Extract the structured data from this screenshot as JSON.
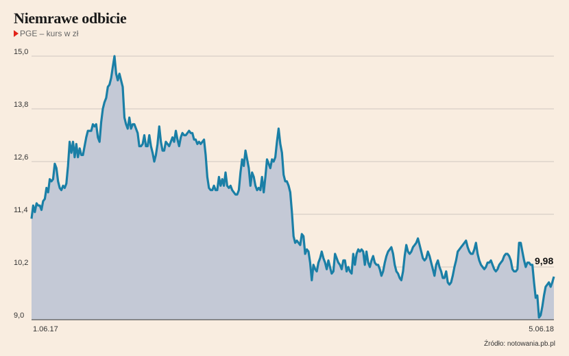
{
  "title": "Niemrawe odbicie",
  "subtitle": "PGE – kurs w zł",
  "source": "Źródło: notowania.pb.pl",
  "chart_data": {
    "type": "area",
    "y_ticks": [
      "15,0",
      "13,8",
      "12,6",
      "11,4",
      "10,2",
      "9,0"
    ],
    "ylim": [
      9.0,
      15.0
    ],
    "x_tick_labels": [
      "1.06.17",
      "5.06.18"
    ],
    "last_value_label": "9,98",
    "grid": true,
    "colors": {
      "line": "#1a7fa6",
      "fill": "#c4c9d6",
      "grid": "#cfc8c0",
      "axis": "#555555"
    },
    "series": [
      {
        "values": [
          11.3,
          11.6,
          11.45,
          11.65,
          11.6,
          11.6,
          11.5,
          11.7,
          11.75,
          12.0,
          11.9,
          12.2,
          12.15,
          12.2,
          12.55,
          12.45,
          12.15,
          12.0,
          11.95,
          12.05,
          12.0,
          12.1,
          12.5,
          13.05,
          12.8,
          13.05,
          12.7,
          13.0,
          12.7,
          12.9,
          12.75,
          12.75,
          12.95,
          13.15,
          13.3,
          13.3,
          13.3,
          13.45,
          13.4,
          13.45,
          13.15,
          13.05,
          13.5,
          13.8,
          13.95,
          14.05,
          14.3,
          14.35,
          14.5,
          14.75,
          15.0,
          14.6,
          14.45,
          14.6,
          14.45,
          14.3,
          13.6,
          13.45,
          13.35,
          13.6,
          13.35,
          13.45,
          13.45,
          13.35,
          13.25,
          12.95,
          12.95,
          13.0,
          13.2,
          12.95,
          12.95,
          13.2,
          12.95,
          12.8,
          12.6,
          12.75,
          13.0,
          13.4,
          13.05,
          12.85,
          12.85,
          13.05,
          13.0,
          12.95,
          13.05,
          13.15,
          13.05,
          13.3,
          13.1,
          12.95,
          13.15,
          13.25,
          13.2,
          13.2,
          13.25,
          13.3,
          13.25,
          13.25,
          13.1,
          13.1,
          13.0,
          13.05,
          13.0,
          13.05,
          13.1,
          12.75,
          12.25,
          12.0,
          11.95,
          11.95,
          12.05,
          11.95,
          11.95,
          12.25,
          12.05,
          12.2,
          12.05,
          12.35,
          12.05,
          12.0,
          12.05,
          11.95,
          11.9,
          11.85,
          11.85,
          11.95,
          12.35,
          12.65,
          12.5,
          12.85,
          12.65,
          12.45,
          12.05,
          12.35,
          12.25,
          12.05,
          11.95,
          12.0,
          11.95,
          12.25,
          11.9,
          12.25,
          12.65,
          12.55,
          12.45,
          12.65,
          12.6,
          12.7,
          13.05,
          13.35,
          13.0,
          12.8,
          12.3,
          12.15,
          12.15,
          12.05,
          11.9,
          11.45,
          10.9,
          10.75,
          10.8,
          10.75,
          10.7,
          10.95,
          10.9,
          10.5,
          10.6,
          10.55,
          10.3,
          9.9,
          10.25,
          10.15,
          10.1,
          10.3,
          10.4,
          10.55,
          10.4,
          10.3,
          10.15,
          10.35,
          10.2,
          10.05,
          10.1,
          10.5,
          10.4,
          10.3,
          10.25,
          10.15,
          10.35,
          10.35,
          10.1,
          10.2,
          10.1,
          10.05,
          10.5,
          10.25,
          10.5,
          10.6,
          10.55,
          10.6,
          10.55,
          10.25,
          10.55,
          10.3,
          10.2,
          10.35,
          10.45,
          10.3,
          10.25,
          10.25,
          10.15,
          10.0,
          10.1,
          10.3,
          10.45,
          10.55,
          10.6,
          10.65,
          10.5,
          10.25,
          10.1,
          10.05,
          9.95,
          9.9,
          10.1,
          10.45,
          10.7,
          10.55,
          10.5,
          10.55,
          10.65,
          10.7,
          10.75,
          10.85,
          10.7,
          10.55,
          10.4,
          10.35,
          10.4,
          10.55,
          10.45,
          10.3,
          10.15,
          10.0,
          10.25,
          10.35,
          10.2,
          10.1,
          9.95,
          9.95,
          10.1,
          9.85,
          9.8,
          9.85,
          10.0,
          10.2,
          10.35,
          10.55,
          10.6,
          10.65,
          10.7,
          10.75,
          10.8,
          10.65,
          10.55,
          10.5,
          10.5,
          10.6,
          10.75,
          10.5,
          10.35,
          10.25,
          10.2,
          10.15,
          10.2,
          10.3,
          10.3,
          10.35,
          10.25,
          10.15,
          10.1,
          10.15,
          10.25,
          10.3,
          10.35,
          10.45,
          10.5,
          10.5,
          10.45,
          10.35,
          10.15,
          10.1,
          10.1,
          10.15,
          10.75,
          10.75,
          10.55,
          10.35,
          10.2,
          10.3,
          10.3,
          10.25,
          10.25,
          9.85,
          9.5,
          9.55,
          9.05,
          9.1,
          9.3,
          9.55,
          9.75,
          9.8,
          9.85,
          9.75,
          9.85,
          9.98
        ]
      }
    ]
  }
}
